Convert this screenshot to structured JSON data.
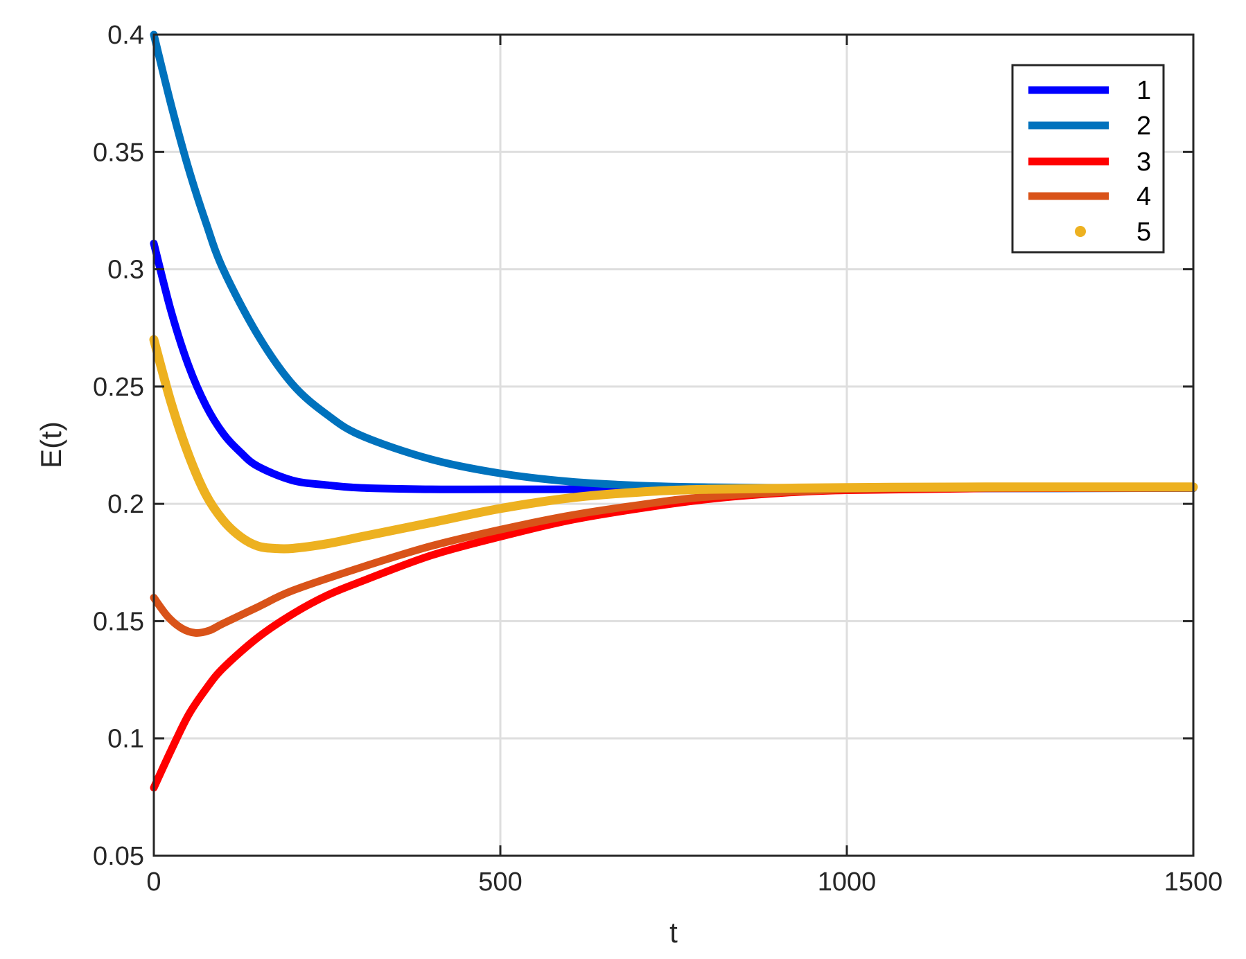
{
  "chart_data": {
    "type": "line",
    "xlabel": "t",
    "ylabel": "E(t)",
    "xlim": [
      0,
      1500
    ],
    "ylim": [
      0.05,
      0.4
    ],
    "xticks": [
      0,
      500,
      1000,
      1500
    ],
    "xtick_labels": [
      "0",
      "500",
      "1000",
      "1500"
    ],
    "yticks": [
      0.05,
      0.1,
      0.15,
      0.2,
      0.25,
      0.3,
      0.35,
      0.4
    ],
    "ytick_labels": [
      "0.05",
      "0.1",
      "0.15",
      "0.2",
      "0.25",
      "0.3",
      "0.35",
      "0.4"
    ],
    "grid": true,
    "legend_position": "top-right",
    "series": [
      {
        "name": "1",
        "color": "#0000ff",
        "style": "line",
        "x": [
          0,
          25,
          50,
          75,
          100,
          125,
          150,
          200,
          250,
          300,
          400,
          500,
          700,
          1000,
          1500
        ],
        "y": [
          0.311,
          0.282,
          0.259,
          0.242,
          0.23,
          0.222,
          0.216,
          0.21,
          0.208,
          0.2068,
          0.2062,
          0.2062,
          0.2062,
          0.2065,
          0.2067
        ]
      },
      {
        "name": "2",
        "color": "#0072bd",
        "style": "line",
        "x": [
          0,
          25,
          50,
          75,
          100,
          150,
          200,
          250,
          300,
          400,
          500,
          600,
          700,
          800,
          1000,
          1200,
          1500
        ],
        "y": [
          0.4,
          0.37,
          0.343,
          0.32,
          0.3,
          0.272,
          0.251,
          0.238,
          0.229,
          0.219,
          0.213,
          0.2095,
          0.2078,
          0.2071,
          0.2067,
          0.2066,
          0.2067
        ]
      },
      {
        "name": "3",
        "color": "#ff0000",
        "style": "line",
        "x": [
          0,
          25,
          50,
          75,
          100,
          150,
          200,
          250,
          300,
          400,
          500,
          600,
          700,
          800,
          900,
          1000,
          1200,
          1500
        ],
        "y": [
          0.079,
          0.095,
          0.11,
          0.121,
          0.13,
          0.143,
          0.153,
          0.161,
          0.167,
          0.178,
          0.186,
          0.193,
          0.198,
          0.202,
          0.2045,
          0.2058,
          0.2066,
          0.2068
        ]
      },
      {
        "name": "4",
        "color": "#d95319",
        "style": "line",
        "x": [
          0,
          20,
          40,
          60,
          80,
          100,
          150,
          200,
          300,
          400,
          500,
          600,
          700,
          800,
          1000,
          1200,
          1500
        ],
        "y": [
          0.16,
          0.152,
          0.147,
          0.145,
          0.146,
          0.149,
          0.156,
          0.163,
          0.173,
          0.182,
          0.189,
          0.195,
          0.1995,
          0.203,
          0.2062,
          0.2067,
          0.2068
        ]
      },
      {
        "name": "5",
        "color": "#edb120",
        "style": "dots",
        "x": [
          0,
          25,
          50,
          75,
          100,
          125,
          150,
          175,
          200,
          250,
          300,
          400,
          500,
          600,
          700,
          800,
          1000,
          1200,
          1500
        ],
        "y": [
          0.27,
          0.243,
          0.221,
          0.204,
          0.193,
          0.186,
          0.182,
          0.181,
          0.181,
          0.183,
          0.186,
          0.192,
          0.198,
          0.2025,
          0.205,
          0.2062,
          0.2069,
          0.2072,
          0.2072
        ]
      }
    ]
  }
}
